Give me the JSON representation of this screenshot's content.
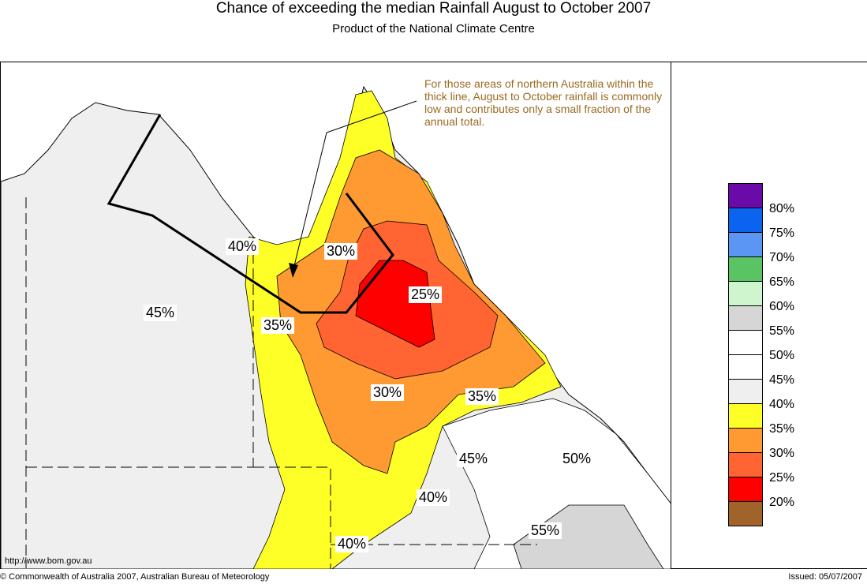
{
  "title": "Chance of exceeding the median Rainfall August to October 2007",
  "subtitle": "Product of the National Climate Centre",
  "note": "For those areas of northern Australia within the thick line, August to October rainfall is commonly low and contributes only a small fraction of the annual total.",
  "website": "http://www.bom.gov.au",
  "copyright": "© Commonwealth of Australia 2007, Australian Bureau of Meteorology",
  "issued": "Issued: 05/07/2007",
  "map_labels": {
    "l40a": "40%",
    "l45a": "45%",
    "l30a": "30%",
    "l35a": "35%",
    "l25": "25%",
    "l30b": "30%",
    "l35b": "35%",
    "l45b": "45%",
    "l50": "50%",
    "l40b": "40%",
    "l55": "55%",
    "l40c": "40%"
  },
  "legend": {
    "colors": [
      "#6a0aa8",
      "#0a64f0",
      "#5c96f5",
      "#5ac464",
      "#cff5cf",
      "#d6d6d6",
      "#ffffff",
      "#ffffff",
      "#efefef",
      "#ffff28",
      "#ff9a32",
      "#ff6432",
      "#ff0000",
      "#a0642a"
    ],
    "labels": [
      "80%",
      "75%",
      "70%",
      "65%",
      "60%",
      "55%",
      "50%",
      "45%",
      "40%",
      "35%",
      "30%",
      "25%",
      "20%"
    ]
  }
}
